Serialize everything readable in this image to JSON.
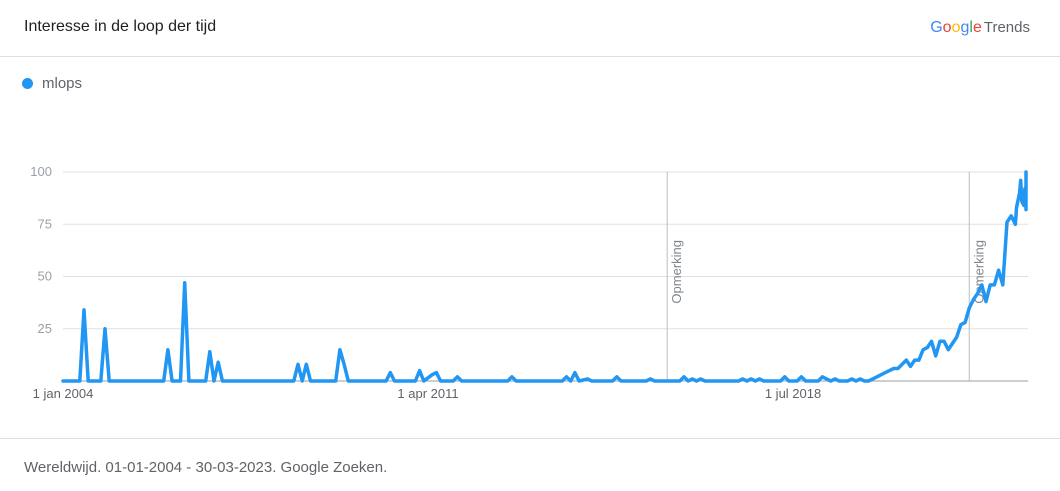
{
  "header": {
    "title": "Interesse in de loop der tijd",
    "brand_letters": [
      "G",
      "o",
      "o",
      "g",
      "l",
      "e"
    ],
    "brand_colors": [
      "#4285F4",
      "#EA4335",
      "#FBBC05",
      "#4285F4",
      "#34A853",
      "#EA4335"
    ],
    "brand_product": "Trends"
  },
  "legend": {
    "label": "mlops",
    "color": "#2196F3"
  },
  "footer": {
    "note": "Wereldwijd. 01-01-2004 - 30-03-2023. Google Zoeken."
  },
  "chart_data": {
    "type": "line",
    "title": "Interesse in de loop der tijd",
    "xlabel": "",
    "ylabel": "",
    "ylim": [
      0,
      100
    ],
    "xlim": [
      "2004-01",
      "2023-03"
    ],
    "yticks": [
      25,
      50,
      75,
      100
    ],
    "xtick_labels": [
      {
        "label": "1 jan 2004",
        "at": "2004-01"
      },
      {
        "label": "1 apr 2011",
        "at": "2011-04"
      },
      {
        "label": "1 jul 2018",
        "at": "2018-07"
      }
    ],
    "grid": true,
    "legend_position": "top-left",
    "line_color": "#2196F3",
    "annotations": [
      {
        "text": "Opmerking",
        "at": "2016-01"
      },
      {
        "text": "Opmerking",
        "at": "2022-01"
      }
    ],
    "series": [
      {
        "name": "mlops",
        "points": [
          [
            "2004-01",
            0
          ],
          [
            "2004-05",
            0
          ],
          [
            "2004-06",
            34
          ],
          [
            "2004-07",
            0
          ],
          [
            "2004-10",
            0
          ],
          [
            "2004-11",
            25
          ],
          [
            "2004-12",
            0
          ],
          [
            "2006-01",
            0
          ],
          [
            "2006-02",
            15
          ],
          [
            "2006-03",
            0
          ],
          [
            "2006-05",
            0
          ],
          [
            "2006-06",
            47
          ],
          [
            "2006-07",
            0
          ],
          [
            "2006-11",
            0
          ],
          [
            "2006-12",
            14
          ],
          [
            "2007-01",
            0
          ],
          [
            "2007-02",
            9
          ],
          [
            "2007-03",
            0
          ],
          [
            "2008-08",
            0
          ],
          [
            "2008-09",
            8
          ],
          [
            "2008-10",
            0
          ],
          [
            "2008-11",
            8
          ],
          [
            "2008-12",
            0
          ],
          [
            "2009-06",
            0
          ],
          [
            "2009-07",
            15
          ],
          [
            "2009-08",
            8
          ],
          [
            "2009-09",
            0
          ],
          [
            "2010-06",
            0
          ],
          [
            "2010-07",
            4
          ],
          [
            "2010-08",
            0
          ],
          [
            "2011-01",
            0
          ],
          [
            "2011-02",
            5
          ],
          [
            "2011-03",
            0
          ],
          [
            "2011-05",
            3
          ],
          [
            "2011-06",
            4
          ],
          [
            "2011-07",
            0
          ],
          [
            "2011-10",
            0
          ],
          [
            "2011-11",
            2
          ],
          [
            "2011-12",
            0
          ],
          [
            "2012-11",
            0
          ],
          [
            "2012-12",
            2
          ],
          [
            "2013-01",
            0
          ],
          [
            "2013-12",
            0
          ],
          [
            "2014-01",
            2
          ],
          [
            "2014-02",
            0
          ],
          [
            "2014-03",
            4
          ],
          [
            "2014-04",
            0
          ],
          [
            "2014-06",
            1
          ],
          [
            "2014-07",
            0
          ],
          [
            "2014-12",
            0
          ],
          [
            "2015-01",
            2
          ],
          [
            "2015-02",
            0
          ],
          [
            "2015-08",
            0
          ],
          [
            "2015-09",
            1
          ],
          [
            "2015-10",
            0
          ],
          [
            "2016-04",
            0
          ],
          [
            "2016-05",
            2
          ],
          [
            "2016-06",
            0
          ],
          [
            "2016-07",
            1
          ],
          [
            "2016-08",
            0
          ],
          [
            "2016-09",
            1
          ],
          [
            "2016-10",
            0
          ],
          [
            "2017-06",
            0
          ],
          [
            "2017-07",
            1
          ],
          [
            "2017-08",
            0
          ],
          [
            "2017-09",
            1
          ],
          [
            "2017-10",
            0
          ],
          [
            "2017-11",
            1
          ],
          [
            "2017-12",
            0
          ],
          [
            "2018-04",
            0
          ],
          [
            "2018-05",
            2
          ],
          [
            "2018-06",
            0
          ],
          [
            "2018-08",
            0
          ],
          [
            "2018-09",
            2
          ],
          [
            "2018-10",
            0
          ],
          [
            "2019-01",
            0
          ],
          [
            "2019-02",
            2
          ],
          [
            "2019-03",
            1
          ],
          [
            "2019-04",
            0
          ],
          [
            "2019-05",
            1
          ],
          [
            "2019-06",
            0
          ],
          [
            "2019-08",
            0
          ],
          [
            "2019-09",
            1
          ],
          [
            "2019-10",
            0
          ],
          [
            "2019-11",
            1
          ],
          [
            "2019-12",
            0
          ],
          [
            "2020-01",
            0
          ],
          [
            "2020-02",
            1
          ],
          [
            "2020-03",
            2
          ],
          [
            "2020-04",
            3
          ],
          [
            "2020-05",
            4
          ],
          [
            "2020-06",
            5
          ],
          [
            "2020-07",
            6
          ],
          [
            "2020-08",
            6
          ],
          [
            "2020-09",
            8
          ],
          [
            "2020-10",
            10
          ],
          [
            "2020-11",
            7
          ],
          [
            "2020-12",
            10
          ],
          [
            "2021-01",
            10
          ],
          [
            "2021-02",
            15
          ],
          [
            "2021-03",
            16
          ],
          [
            "2021-04",
            19
          ],
          [
            "2021-05",
            12
          ],
          [
            "2021-06",
            19
          ],
          [
            "2021-07",
            19
          ],
          [
            "2021-08",
            15
          ],
          [
            "2021-09",
            18
          ],
          [
            "2021-10",
            21
          ],
          [
            "2021-11",
            27
          ],
          [
            "2021-12",
            28
          ],
          [
            "2022-01",
            35
          ],
          [
            "2022-02",
            39
          ],
          [
            "2022-03",
            42
          ],
          [
            "2022-04",
            46
          ],
          [
            "2022-05",
            38
          ],
          [
            "2022-06",
            46
          ],
          [
            "2022-07",
            46
          ],
          [
            "2022-08",
            53
          ],
          [
            "2022-09",
            46
          ],
          [
            "2022-10",
            76
          ],
          [
            "2022-11",
            79
          ],
          [
            "2022-12",
            75
          ],
          [
            "2022-12",
            83
          ],
          [
            "2023-01",
            90
          ],
          [
            "2023-01",
            96
          ],
          [
            "2023-01",
            86
          ],
          [
            "2023-02",
            84
          ],
          [
            "2023-02",
            92
          ],
          [
            "2023-02",
            86
          ],
          [
            "2023-02",
            93
          ],
          [
            "2023-03",
            82
          ],
          [
            "2023-03",
            98
          ],
          [
            "2023-03",
            100
          ],
          [
            "2023-03",
            98
          ]
        ]
      }
    ]
  }
}
